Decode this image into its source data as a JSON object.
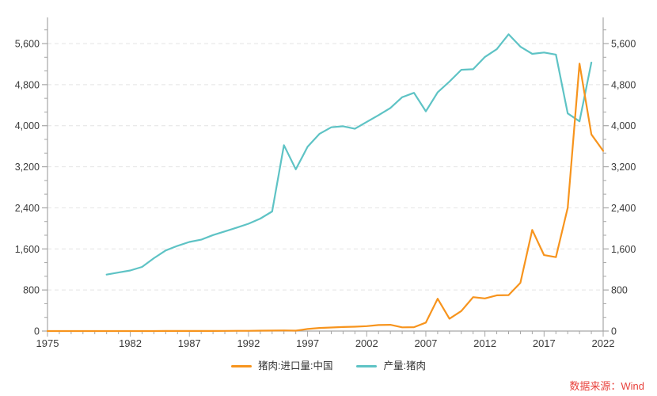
{
  "chart_data": {
    "type": "line",
    "title": "",
    "xlabel": "",
    "ylabel": "",
    "x_range": [
      1975,
      2022
    ],
    "x_tick_labels": [
      1975,
      1982,
      1987,
      1992,
      1997,
      2002,
      2007,
      2012,
      2017,
      2022
    ],
    "y_axis": {
      "min": 0,
      "top_label": 5600,
      "major_step": 800,
      "major_ticks": [
        0,
        800,
        1600,
        2400,
        3200,
        4000,
        4800,
        5600
      ],
      "minor_divisions": 3,
      "dual_axis": true
    },
    "grid": "horizontal-dashed",
    "legend_position": "bottom-center",
    "series": [
      {
        "key": "imports",
        "name": "猪肉:进口量:中国",
        "color": "#F7941D",
        "years": [
          1975,
          1976,
          1977,
          1978,
          1979,
          1980,
          1981,
          1982,
          1983,
          1984,
          1985,
          1986,
          1987,
          1988,
          1989,
          1990,
          1991,
          1992,
          1993,
          1994,
          1995,
          1996,
          1997,
          1998,
          1999,
          2000,
          2001,
          2002,
          2003,
          2004,
          2005,
          2006,
          2007,
          2008,
          2009,
          2010,
          2011,
          2012,
          2013,
          2014,
          2015,
          2016,
          2017,
          2018,
          2019,
          2020,
          2021,
          2022
        ],
        "values": [
          0,
          0,
          0,
          0,
          0,
          0,
          0,
          0,
          0,
          0,
          2,
          2,
          2,
          2,
          2,
          3,
          4,
          5,
          8,
          10,
          12,
          8,
          40,
          60,
          70,
          78,
          85,
          95,
          118,
          122,
          72,
          75,
          165,
          630,
          240,
          390,
          660,
          635,
          695,
          700,
          940,
          1970,
          1480,
          1440,
          2400,
          5210,
          3830,
          3510
        ]
      },
      {
        "key": "production",
        "name": "产量:猪肉",
        "color": "#5EC3C5",
        "years": [
          1980,
          1981,
          1982,
          1983,
          1984,
          1985,
          1986,
          1987,
          1988,
          1989,
          1990,
          1991,
          1992,
          1993,
          1994,
          1995,
          1996,
          1997,
          1998,
          1999,
          2000,
          2001,
          2002,
          2003,
          2004,
          2005,
          2006,
          2007,
          2008,
          2009,
          2010,
          2011,
          2012,
          2013,
          2014,
          2015,
          2016,
          2017,
          2018,
          2019,
          2020,
          2021
        ],
        "values": [
          1100,
          1140,
          1180,
          1250,
          1420,
          1570,
          1660,
          1735,
          1780,
          1870,
          1940,
          2015,
          2090,
          2190,
          2330,
          3620,
          3150,
          3590,
          3840,
          3970,
          3990,
          3940,
          4075,
          4205,
          4345,
          4555,
          4640,
          4280,
          4650,
          4860,
          5090,
          5100,
          5340,
          5490,
          5780,
          5540,
          5400,
          5425,
          5385,
          4240,
          4085,
          5230
        ]
      }
    ]
  },
  "source_note": "数据来源：Wind",
  "styles": {
    "axis_color": "#A6A6A6",
    "grid_color": "#E4E4E4",
    "label_color": "#3B3B3B",
    "source_color": "#E8423D"
  }
}
